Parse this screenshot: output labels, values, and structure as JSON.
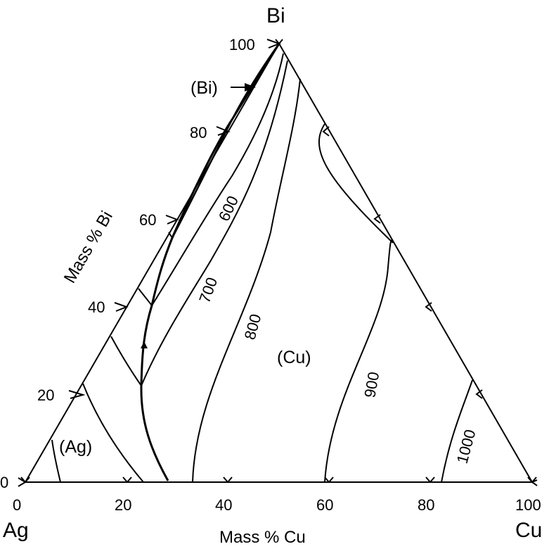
{
  "corners": {
    "top": "Bi",
    "left": "Ag",
    "right": "Cu"
  },
  "axes": {
    "bottom_label": "Mass % Cu",
    "left_label": "Mass % Bi",
    "bottom_ticks": [
      "0",
      "20",
      "40",
      "60",
      "80",
      "100"
    ],
    "left_ticks": [
      "0",
      "20",
      "40",
      "60",
      "80",
      "100"
    ]
  },
  "regions": {
    "bi": "(Bi)",
    "ag": "(Ag)",
    "cu": "(Cu)"
  },
  "isotherm_labels": [
    "600",
    "700",
    "800",
    "900",
    "1000"
  ]
}
